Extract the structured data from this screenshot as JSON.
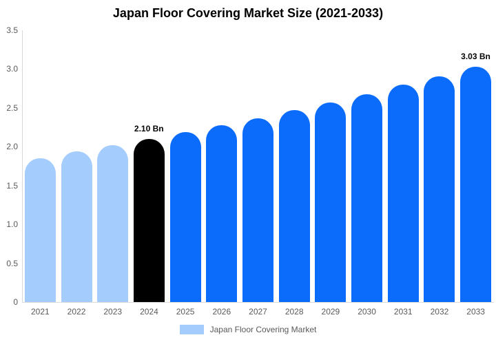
{
  "title": "Japan Floor Covering Market Size (2021-2033)",
  "chart_data": {
    "type": "bar",
    "title": "Japan Floor Covering Market Size (2021-2033)",
    "categories": [
      "2021",
      "2022",
      "2023",
      "2024",
      "2025",
      "2026",
      "2027",
      "2028",
      "2029",
      "2030",
      "2031",
      "2032",
      "2033"
    ],
    "values": [
      1.85,
      1.94,
      2.02,
      2.1,
      2.19,
      2.28,
      2.37,
      2.47,
      2.57,
      2.68,
      2.8,
      2.91,
      3.03
    ],
    "unit": "Bn",
    "xlabel": "",
    "ylabel": "",
    "ylim": [
      0,
      3.5
    ],
    "yticks": [
      "3.5",
      "3.0",
      "2.5",
      "2.0",
      "1.5",
      "1.0",
      "0.5",
      "0"
    ],
    "grid": false,
    "bar_colors": [
      "#A4CDFD",
      "#A4CDFD",
      "#A4CDFD",
      "#000000",
      "#0B6CFB",
      "#0B6CFB",
      "#0B6CFB",
      "#0B6CFB",
      "#0B6CFB",
      "#0B6CFB",
      "#0B6CFB",
      "#0B6CFB",
      "#0B6CFB"
    ],
    "annotations": [
      {
        "category": "2024",
        "text": "2.10 Bn"
      },
      {
        "category": "2033",
        "text": "3.03 Bn"
      }
    ],
    "legend": {
      "position": "bottom",
      "label": "Japan Floor Covering Market",
      "swatch_color": "#A4CDFD"
    }
  },
  "colors": {
    "bar_light_blue": "#A4CDFD",
    "bar_blue": "#0B6CFB",
    "bar_highlight_black": "#000000",
    "axis_line": "#D9D9D9",
    "tick_text": "#595959",
    "title_text": "#000000",
    "background": "#FFFFFF"
  }
}
